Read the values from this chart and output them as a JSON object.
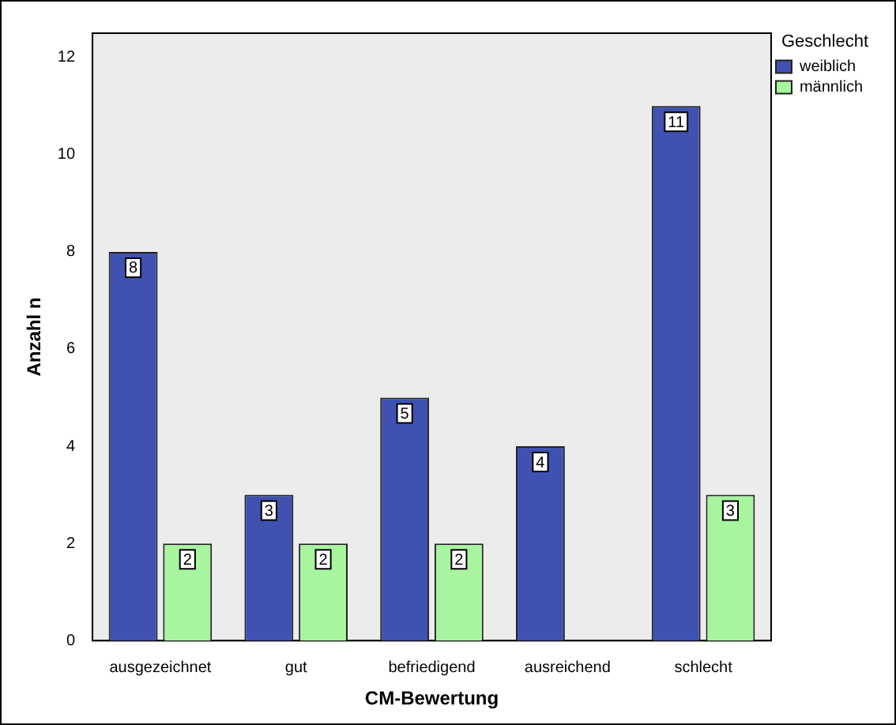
{
  "chart_data": {
    "type": "bar",
    "xlabel": "CM-Bewertung",
    "ylabel": "Anzahl n",
    "legend_title": "Geschlecht",
    "legend": "top right",
    "categories": [
      "ausgezeichnet",
      "gut",
      "befriedigend",
      "ausreichend",
      "schlecht"
    ],
    "series": [
      {
        "name": "weiblich",
        "color": "#3f51b1",
        "values": [
          8,
          3,
          5,
          4,
          11
        ],
        "value_labels": [
          "8",
          "3",
          "5",
          "4",
          "11"
        ]
      },
      {
        "name": "männlich",
        "color": "#a8f5a0",
        "values": [
          2,
          2,
          2,
          0,
          3
        ],
        "value_labels": [
          "2",
          "2",
          "2",
          null,
          "3"
        ]
      }
    ],
    "ylim": [
      0,
      12.5
    ],
    "yticks": [
      0,
      2,
      4,
      6,
      8,
      10,
      12
    ],
    "grid": false
  }
}
